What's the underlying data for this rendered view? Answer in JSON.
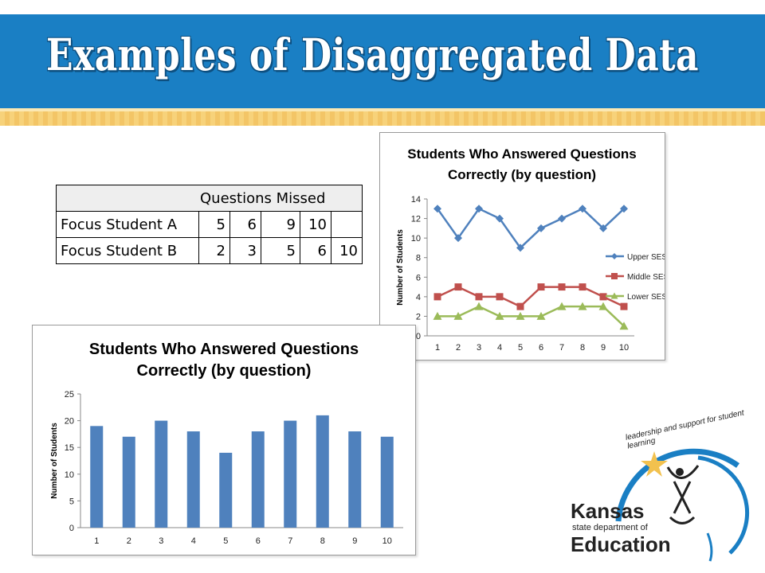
{
  "slide": {
    "title": "Examples of Disaggregated Data"
  },
  "missed_table": {
    "header": "Questions Missed",
    "rows": [
      {
        "label": "Focus Student A",
        "values": [
          "5",
          "6",
          "9",
          "10",
          ""
        ]
      },
      {
        "label": "Focus Student B",
        "values": [
          "2",
          "3",
          "5",
          "6",
          "10"
        ]
      }
    ]
  },
  "colors": {
    "title_bar": "#1a7fc4",
    "bar": "#4f81bd",
    "upper": "#4f81bd",
    "middle": "#c0504d",
    "lower": "#9bbb59"
  },
  "chart_data": [
    {
      "type": "line",
      "title_lines": [
        "Students Who Answered Questions",
        "Correctly (by question)"
      ],
      "ylabel": "Number of Students",
      "xlabel": "",
      "x": [
        1,
        2,
        3,
        4,
        5,
        6,
        7,
        8,
        9,
        10
      ],
      "ylim": [
        0,
        14
      ],
      "yticks": [
        0,
        2,
        4,
        6,
        8,
        10,
        12,
        14
      ],
      "grid": false,
      "legend": "right",
      "series": [
        {
          "name": "Upper SES",
          "marker": "diamond",
          "color": "#4f81bd",
          "values": [
            13,
            10,
            13,
            12,
            9,
            11,
            12,
            13,
            11,
            13
          ]
        },
        {
          "name": "Middle SES",
          "marker": "square",
          "color": "#c0504d",
          "values": [
            4,
            5,
            4,
            4,
            3,
            5,
            5,
            5,
            4,
            3
          ]
        },
        {
          "name": "Lower SES",
          "marker": "triangle",
          "color": "#9bbb59",
          "values": [
            2,
            2,
            3,
            2,
            2,
            2,
            3,
            3,
            3,
            1
          ]
        }
      ]
    },
    {
      "type": "bar",
      "title_lines": [
        "Students Who Answered Questions",
        "Correctly (by question)"
      ],
      "ylabel": "Number of Students",
      "xlabel": "",
      "categories": [
        "1",
        "2",
        "3",
        "4",
        "5",
        "6",
        "7",
        "8",
        "9",
        "10"
      ],
      "values": [
        19,
        17,
        20,
        18,
        14,
        18,
        20,
        21,
        18,
        17
      ],
      "ylim": [
        0,
        25
      ],
      "yticks": [
        0,
        5,
        10,
        15,
        20,
        25
      ],
      "grid": false,
      "legend": "none"
    }
  ],
  "logo": {
    "arc_text": "leadership and support for student learning",
    "line1": "Kansas",
    "line2": "state department of",
    "line3": "Education"
  }
}
